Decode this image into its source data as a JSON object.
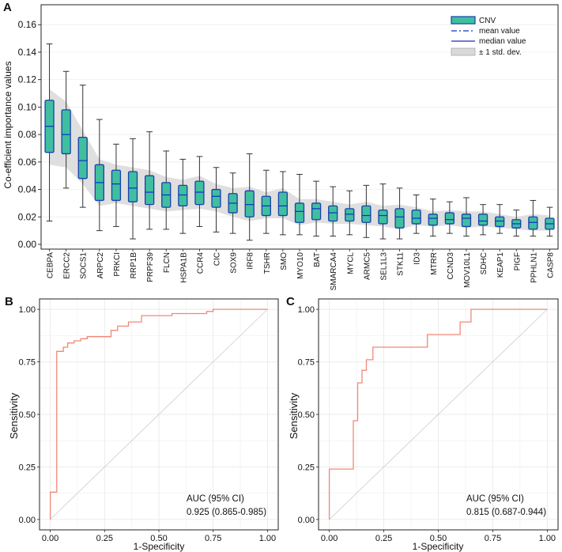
{
  "figure": {
    "panel_a_label": "A",
    "panel_b_label": "B",
    "panel_c_label": "C"
  },
  "colors": {
    "box_fill": "#3fbf9f",
    "box_edge": "#1a3fb0",
    "median_line": "#1030c0",
    "whisker": "#333333",
    "band_fill": "#d9d9d9",
    "roc_line": "#f08878",
    "diag_line": "#cccccc",
    "grid": "#ebebeb",
    "axis": "#222222"
  },
  "chart_data": [
    {
      "type": "box",
      "panel": "A",
      "title": "",
      "ylabel": "Co-efficient importance values",
      "xlabel": "",
      "ylim": [
        0,
        0.165
      ],
      "yticks": [
        0.0,
        0.02,
        0.04,
        0.06,
        0.08,
        0.1,
        0.12,
        0.14,
        0.16
      ],
      "ytick_labels": [
        "0.00",
        "0.02",
        "0.04",
        "0.06",
        "0.08",
        "0.10",
        "0.12",
        "0.14",
        "0.16"
      ],
      "legend": {
        "position": "top-right",
        "entries": [
          "CNV",
          "mean value",
          "median value",
          "± 1 std. dev."
        ]
      },
      "categories": [
        "CEBPA",
        "ERCC2",
        "SOCS1",
        "ARPC2",
        "PRKCI",
        "RRP1B",
        "PRPF39",
        "FLCN",
        "HSPA1B",
        "CCR4",
        "CIC",
        "SOX9",
        "IRF8",
        "TSHR",
        "SMO",
        "MYO10",
        "BAT",
        "SMARCA4",
        "MYCL",
        "ARMC5",
        "SEL1L3",
        "STK11",
        "ID3",
        "MTRR",
        "CCND3",
        "MOV10L1",
        "SDHC",
        "KEAP1",
        "PIGF",
        "PPHLN1",
        "CASP8"
      ],
      "whisker_low": [
        0.017,
        0.041,
        0.027,
        0.01,
        0.013,
        0.004,
        0.011,
        0.011,
        0.008,
        0.013,
        0.009,
        0.008,
        0.003,
        0.008,
        0.007,
        0.007,
        0.006,
        0.006,
        0.007,
        0.005,
        0.004,
        0.004,
        0.008,
        0.006,
        0.008,
        0.006,
        0.007,
        0.008,
        0.006,
        0.006,
        0.006
      ],
      "q1": [
        0.067,
        0.066,
        0.048,
        0.032,
        0.032,
        0.031,
        0.029,
        0.027,
        0.028,
        0.029,
        0.027,
        0.023,
        0.02,
        0.021,
        0.021,
        0.016,
        0.018,
        0.017,
        0.017,
        0.016,
        0.015,
        0.012,
        0.015,
        0.014,
        0.015,
        0.013,
        0.014,
        0.013,
        0.012,
        0.011,
        0.011
      ],
      "median": [
        0.086,
        0.08,
        0.061,
        0.045,
        0.044,
        0.041,
        0.038,
        0.036,
        0.036,
        0.038,
        0.035,
        0.03,
        0.029,
        0.028,
        0.028,
        0.024,
        0.026,
        0.023,
        0.022,
        0.021,
        0.021,
        0.02,
        0.019,
        0.019,
        0.018,
        0.019,
        0.017,
        0.017,
        0.015,
        0.016,
        0.015
      ],
      "q3": [
        0.105,
        0.098,
        0.078,
        0.058,
        0.054,
        0.053,
        0.05,
        0.045,
        0.043,
        0.046,
        0.04,
        0.037,
        0.039,
        0.035,
        0.038,
        0.03,
        0.03,
        0.028,
        0.026,
        0.028,
        0.025,
        0.026,
        0.025,
        0.022,
        0.023,
        0.022,
        0.022,
        0.02,
        0.018,
        0.02,
        0.019
      ],
      "whisker_high": [
        0.146,
        0.126,
        0.116,
        0.091,
        0.073,
        0.077,
        0.082,
        0.068,
        0.062,
        0.064,
        0.056,
        0.052,
        0.066,
        0.054,
        0.053,
        0.051,
        0.046,
        0.042,
        0.039,
        0.043,
        0.044,
        0.041,
        0.036,
        0.033,
        0.031,
        0.034,
        0.029,
        0.029,
        0.025,
        0.032,
        0.027
      ],
      "std_band_low": [
        0.058,
        0.056,
        0.044,
        0.028,
        0.03,
        0.028,
        0.026,
        0.024,
        0.025,
        0.026,
        0.024,
        0.02,
        0.017,
        0.019,
        0.019,
        0.014,
        0.016,
        0.015,
        0.015,
        0.014,
        0.013,
        0.011,
        0.014,
        0.013,
        0.014,
        0.012,
        0.013,
        0.012,
        0.011,
        0.01,
        0.01
      ],
      "std_band_high": [
        0.113,
        0.104,
        0.083,
        0.062,
        0.058,
        0.056,
        0.054,
        0.049,
        0.047,
        0.05,
        0.044,
        0.041,
        0.042,
        0.038,
        0.041,
        0.033,
        0.033,
        0.031,
        0.029,
        0.031,
        0.028,
        0.029,
        0.027,
        0.024,
        0.025,
        0.024,
        0.024,
        0.022,
        0.02,
        0.022,
        0.021
      ]
    },
    {
      "type": "line",
      "panel": "B",
      "title": "",
      "xlabel": "1-Specificity",
      "ylabel": "Sensitivity",
      "xlim": [
        0,
        1
      ],
      "ylim": [
        0,
        1
      ],
      "ticks": [
        0.0,
        0.25,
        0.5,
        0.75,
        1.0
      ],
      "tick_labels": [
        "0.00",
        "0.25",
        "0.50",
        "0.75",
        "1.00"
      ],
      "annotation_title": "AUC (95% CI)",
      "annotation_value": "0.925 (0.865-0.985)",
      "x": [
        0.0,
        0.0,
        0.03,
        0.03,
        0.06,
        0.06,
        0.08,
        0.08,
        0.11,
        0.11,
        0.14,
        0.14,
        0.17,
        0.17,
        0.28,
        0.28,
        0.31,
        0.31,
        0.36,
        0.36,
        0.42,
        0.42,
        0.56,
        0.56,
        0.72,
        0.72,
        0.75,
        0.75,
        1.0
      ],
      "y": [
        0.0,
        0.13,
        0.13,
        0.8,
        0.8,
        0.82,
        0.82,
        0.84,
        0.84,
        0.85,
        0.85,
        0.86,
        0.86,
        0.87,
        0.87,
        0.9,
        0.9,
        0.92,
        0.92,
        0.94,
        0.94,
        0.97,
        0.97,
        0.98,
        0.98,
        0.99,
        0.99,
        1.0,
        1.0
      ]
    },
    {
      "type": "line",
      "panel": "C",
      "title": "",
      "xlabel": "1-Specificity",
      "ylabel": "Sensitivity",
      "xlim": [
        0,
        1
      ],
      "ylim": [
        0,
        1
      ],
      "ticks": [
        0.0,
        0.25,
        0.5,
        0.75,
        1.0
      ],
      "tick_labels": [
        "0.00",
        "0.25",
        "0.50",
        "0.75",
        "1.00"
      ],
      "annotation_title": "AUC (95% CI)",
      "annotation_value": "0.815 (0.687-0.944)",
      "x": [
        0.0,
        0.0,
        0.11,
        0.11,
        0.13,
        0.13,
        0.15,
        0.15,
        0.17,
        0.17,
        0.2,
        0.2,
        0.22,
        0.22,
        0.45,
        0.45,
        0.6,
        0.6,
        0.65,
        0.65,
        1.0
      ],
      "y": [
        0.0,
        0.24,
        0.24,
        0.47,
        0.47,
        0.65,
        0.65,
        0.71,
        0.71,
        0.76,
        0.76,
        0.82,
        0.82,
        0.82,
        0.82,
        0.88,
        0.88,
        0.94,
        0.94,
        1.0,
        1.0
      ]
    }
  ]
}
